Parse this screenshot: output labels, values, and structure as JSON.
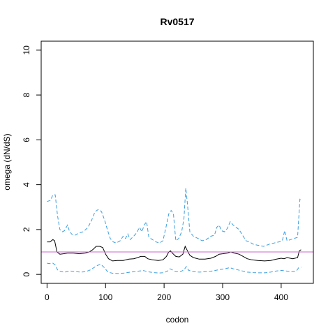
{
  "chart_data": {
    "type": "line",
    "title": "Rv0517",
    "xlabel": "codon",
    "ylabel": "omega (dN/dS)",
    "xlim": [
      -10,
      455
    ],
    "ylim": [
      -0.4,
      10.4
    ],
    "x_ticks": [
      0,
      100,
      200,
      300,
      400
    ],
    "y_ticks": [
      0,
      2,
      4,
      6,
      8,
      10
    ],
    "reference_line": {
      "y": 1,
      "color": "#cc66cc"
    },
    "series": [
      {
        "style": "upper-dashed",
        "color": "#3a9ee0",
        "points": [
          [
            0,
            3.25
          ],
          [
            6,
            3.3
          ],
          [
            10,
            3.55
          ],
          [
            14,
            3.55
          ],
          [
            18,
            2.6
          ],
          [
            22,
            2.0
          ],
          [
            26,
            1.9
          ],
          [
            30,
            1.95
          ],
          [
            35,
            2.2
          ],
          [
            38,
            1.95
          ],
          [
            42,
            1.8
          ],
          [
            48,
            1.75
          ],
          [
            55,
            1.85
          ],
          [
            62,
            1.9
          ],
          [
            70,
            2.1
          ],
          [
            76,
            2.4
          ],
          [
            82,
            2.8
          ],
          [
            88,
            2.9
          ],
          [
            93,
            2.8
          ],
          [
            98,
            2.45
          ],
          [
            103,
            2.0
          ],
          [
            108,
            1.6
          ],
          [
            113,
            1.45
          ],
          [
            118,
            1.4
          ],
          [
            125,
            1.5
          ],
          [
            130,
            1.7
          ],
          [
            134,
            1.6
          ],
          [
            138,
            1.8
          ],
          [
            142,
            1.55
          ],
          [
            148,
            1.7
          ],
          [
            153,
            1.85
          ],
          [
            158,
            2.1
          ],
          [
            162,
            1.9
          ],
          [
            166,
            2.2
          ],
          [
            170,
            2.35
          ],
          [
            174,
            1.65
          ],
          [
            180,
            1.55
          ],
          [
            186,
            1.45
          ],
          [
            192,
            1.4
          ],
          [
            198,
            1.5
          ],
          [
            204,
            2.2
          ],
          [
            208,
            2.7
          ],
          [
            212,
            2.85
          ],
          [
            216,
            2.7
          ],
          [
            220,
            1.5
          ],
          [
            225,
            1.6
          ],
          [
            230,
            1.9
          ],
          [
            234,
            2.5
          ],
          [
            237,
            3.85
          ],
          [
            240,
            3.1
          ],
          [
            244,
            1.9
          ],
          [
            250,
            1.7
          ],
          [
            258,
            1.6
          ],
          [
            265,
            1.5
          ],
          [
            272,
            1.55
          ],
          [
            280,
            1.7
          ],
          [
            286,
            1.75
          ],
          [
            290,
            2.1
          ],
          [
            294,
            2.2
          ],
          [
            298,
            1.95
          ],
          [
            303,
            1.9
          ],
          [
            308,
            2.05
          ],
          [
            313,
            2.35
          ],
          [
            318,
            2.2
          ],
          [
            323,
            2.1
          ],
          [
            328,
            2.0
          ],
          [
            334,
            1.75
          ],
          [
            340,
            1.5
          ],
          [
            346,
            1.45
          ],
          [
            352,
            1.35
          ],
          [
            360,
            1.3
          ],
          [
            370,
            1.25
          ],
          [
            380,
            1.35
          ],
          [
            388,
            1.4
          ],
          [
            396,
            1.45
          ],
          [
            402,
            1.5
          ],
          [
            406,
            1.95
          ],
          [
            410,
            1.5
          ],
          [
            416,
            1.55
          ],
          [
            422,
            1.6
          ],
          [
            428,
            1.65
          ],
          [
            432,
            3.35
          ],
          [
            434,
            3.3
          ]
        ]
      },
      {
        "style": "mean-solid",
        "color": "#000000",
        "points": [
          [
            0,
            1.45
          ],
          [
            5,
            1.45
          ],
          [
            10,
            1.55
          ],
          [
            13,
            1.5
          ],
          [
            17,
            1.0
          ],
          [
            22,
            0.9
          ],
          [
            28,
            0.92
          ],
          [
            35,
            0.95
          ],
          [
            45,
            0.95
          ],
          [
            55,
            0.92
          ],
          [
            65,
            0.95
          ],
          [
            72,
            1.0
          ],
          [
            78,
            1.1
          ],
          [
            84,
            1.25
          ],
          [
            90,
            1.25
          ],
          [
            95,
            1.2
          ],
          [
            100,
            0.9
          ],
          [
            105,
            0.7
          ],
          [
            112,
            0.6
          ],
          [
            120,
            0.62
          ],
          [
            130,
            0.62
          ],
          [
            140,
            0.68
          ],
          [
            148,
            0.7
          ],
          [
            155,
            0.75
          ],
          [
            160,
            0.8
          ],
          [
            167,
            0.8
          ],
          [
            172,
            0.7
          ],
          [
            180,
            0.65
          ],
          [
            190,
            0.62
          ],
          [
            198,
            0.65
          ],
          [
            204,
            0.8
          ],
          [
            208,
            1.0
          ],
          [
            211,
            1.05
          ],
          [
            214,
            0.95
          ],
          [
            220,
            0.8
          ],
          [
            226,
            0.78
          ],
          [
            232,
            0.9
          ],
          [
            236,
            1.25
          ],
          [
            239,
            1.1
          ],
          [
            244,
            0.85
          ],
          [
            250,
            0.75
          ],
          [
            260,
            0.68
          ],
          [
            270,
            0.68
          ],
          [
            280,
            0.72
          ],
          [
            288,
            0.8
          ],
          [
            294,
            0.9
          ],
          [
            300,
            0.92
          ],
          [
            308,
            0.95
          ],
          [
            314,
            1.0
          ],
          [
            320,
            0.95
          ],
          [
            328,
            0.9
          ],
          [
            335,
            0.8
          ],
          [
            342,
            0.7
          ],
          [
            350,
            0.65
          ],
          [
            360,
            0.62
          ],
          [
            372,
            0.6
          ],
          [
            382,
            0.62
          ],
          [
            392,
            0.68
          ],
          [
            400,
            0.72
          ],
          [
            405,
            0.7
          ],
          [
            410,
            0.75
          ],
          [
            420,
            0.7
          ],
          [
            428,
            0.75
          ],
          [
            431,
            1.05
          ],
          [
            434,
            1.1
          ]
        ]
      },
      {
        "style": "lower-dashed",
        "color": "#3a9ee0",
        "points": [
          [
            0,
            0.5
          ],
          [
            5,
            0.48
          ],
          [
            10,
            0.5
          ],
          [
            14,
            0.42
          ],
          [
            18,
            0.2
          ],
          [
            24,
            0.12
          ],
          [
            30,
            0.1
          ],
          [
            40,
            0.15
          ],
          [
            50,
            0.12
          ],
          [
            58,
            0.1
          ],
          [
            66,
            0.12
          ],
          [
            74,
            0.2
          ],
          [
            80,
            0.3
          ],
          [
            86,
            0.4
          ],
          [
            92,
            0.45
          ],
          [
            98,
            0.3
          ],
          [
            104,
            0.1
          ],
          [
            112,
            0.05
          ],
          [
            122,
            0.04
          ],
          [
            132,
            0.06
          ],
          [
            142,
            0.1
          ],
          [
            150,
            0.12
          ],
          [
            158,
            0.15
          ],
          [
            165,
            0.17
          ],
          [
            172,
            0.12
          ],
          [
            182,
            0.08
          ],
          [
            192,
            0.06
          ],
          [
            200,
            0.08
          ],
          [
            206,
            0.15
          ],
          [
            210,
            0.25
          ],
          [
            214,
            0.2
          ],
          [
            220,
            0.12
          ],
          [
            228,
            0.12
          ],
          [
            234,
            0.2
          ],
          [
            238,
            0.35
          ],
          [
            242,
            0.18
          ],
          [
            250,
            0.12
          ],
          [
            260,
            0.1
          ],
          [
            270,
            0.12
          ],
          [
            280,
            0.14
          ],
          [
            288,
            0.18
          ],
          [
            296,
            0.22
          ],
          [
            304,
            0.25
          ],
          [
            312,
            0.3
          ],
          [
            318,
            0.25
          ],
          [
            326,
            0.2
          ],
          [
            334,
            0.15
          ],
          [
            342,
            0.1
          ],
          [
            352,
            0.08
          ],
          [
            362,
            0.07
          ],
          [
            372,
            0.07
          ],
          [
            382,
            0.1
          ],
          [
            392,
            0.15
          ],
          [
            400,
            0.18
          ],
          [
            408,
            0.15
          ],
          [
            418,
            0.12
          ],
          [
            426,
            0.15
          ],
          [
            430,
            0.3
          ],
          [
            434,
            0.32
          ]
        ]
      }
    ]
  }
}
